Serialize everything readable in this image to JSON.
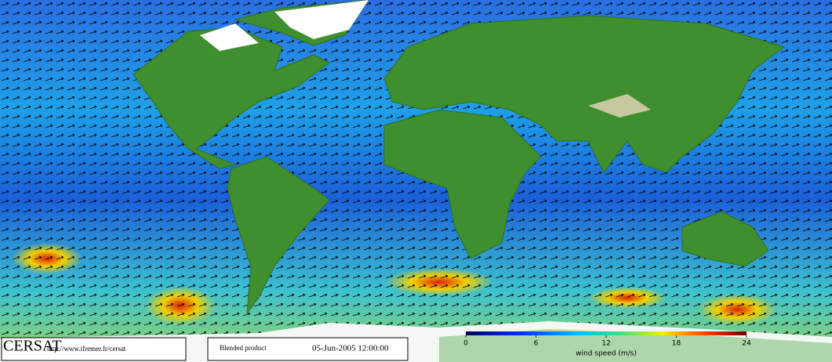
{
  "logo": "CERSAT",
  "url": "http://www.ifremer.fr/cersat",
  "product": "Blended product",
  "timestamp": "05-Jun-2005 12:00:00",
  "colorbar": {
    "label": "wind speed (m/s)",
    "range": [
      0,
      24
    ],
    "ticks": [
      0,
      6,
      12,
      18,
      24
    ]
  }
}
